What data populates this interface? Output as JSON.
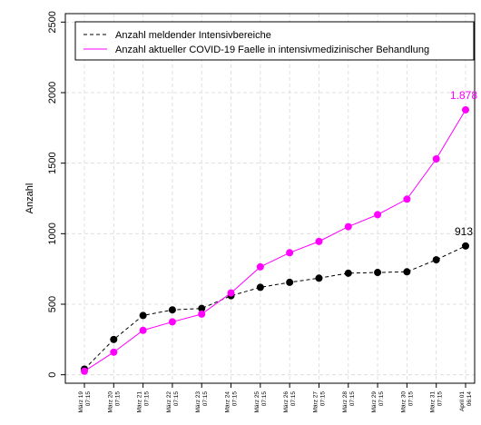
{
  "chart_data": {
    "type": "line",
    "ylabel": "Anzahl",
    "xlabel": "",
    "ylim": [
      -60,
      2560
    ],
    "yticks": [
      0,
      500,
      1000,
      1500,
      2000,
      2500
    ],
    "grid": true,
    "legend_position": "top",
    "categories": [
      {
        "line1": "März 19",
        "line2": "07:15"
      },
      {
        "line1": "März 20",
        "line2": "07:15"
      },
      {
        "line1": "März 21",
        "line2": "07:15"
      },
      {
        "line1": "März 22",
        "line2": "07:15"
      },
      {
        "line1": "März 23",
        "line2": "07:15"
      },
      {
        "line1": "März 24",
        "line2": "07:15"
      },
      {
        "line1": "März 25",
        "line2": "07:15"
      },
      {
        "line1": "März 26",
        "line2": "07:15"
      },
      {
        "line1": "März 27",
        "line2": "07:15"
      },
      {
        "line1": "März 28",
        "line2": "07:15"
      },
      {
        "line1": "März 29",
        "line2": "07:15"
      },
      {
        "line1": "März 30",
        "line2": "07:15"
      },
      {
        "line1": "März 31",
        "line2": "07:15"
      },
      {
        "line1": "April 01",
        "line2": "06:14"
      }
    ],
    "series": [
      {
        "name": "Anzahl meldender Intensivbereiche",
        "color": "#000000",
        "dashed": true,
        "values": [
          40,
          250,
          420,
          460,
          470,
          560,
          620,
          655,
          685,
          720,
          725,
          730,
          815,
          913
        ],
        "end_label": "913"
      },
      {
        "name": "Anzahl aktueller COVID-19 Faelle in intensivmedizinischer Behandlung",
        "color": "#ff00ff",
        "dashed": false,
        "values": [
          25,
          160,
          315,
          375,
          430,
          580,
          765,
          865,
          945,
          1050,
          1135,
          1245,
          1530,
          1878
        ],
        "end_label": "1.878"
      }
    ]
  }
}
